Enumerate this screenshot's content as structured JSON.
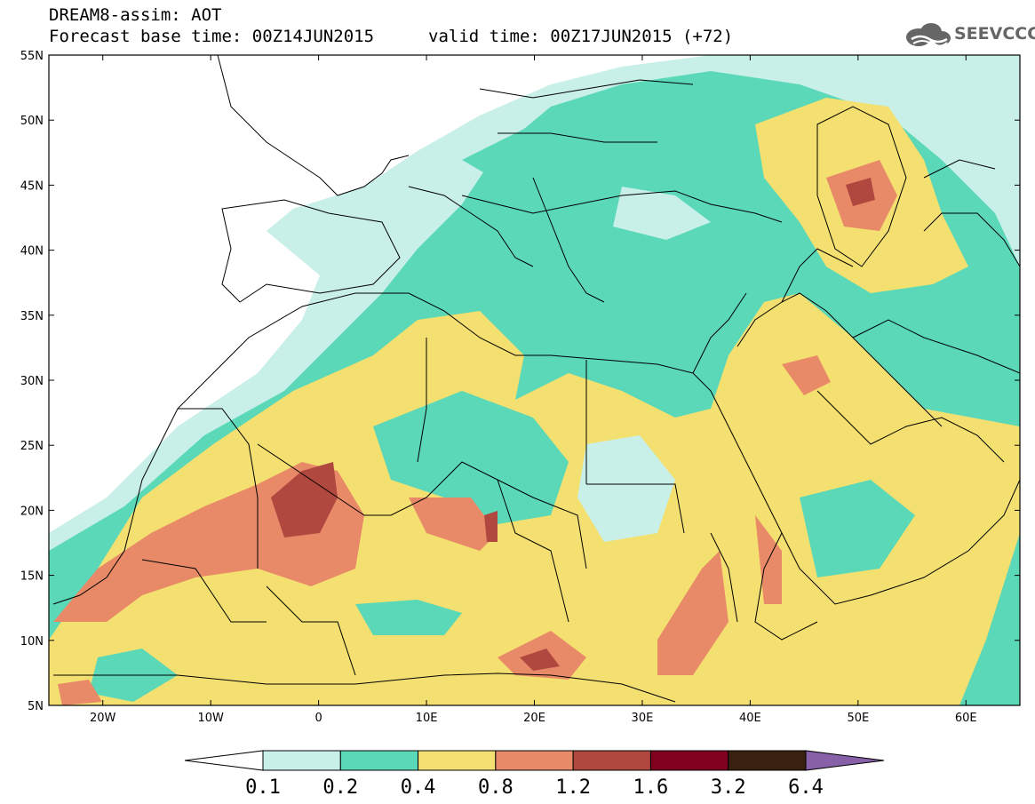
{
  "header": {
    "line1": "DREAM8-assim: AOT",
    "line2": "Forecast base time: 00Z14JUN2015",
    "line3": "valid time: 00Z17JUN2015 (+72)"
  },
  "logo": {
    "text": "SEEVCCC",
    "icon": "cloud-icon"
  },
  "map": {
    "lon_range": [
      -25,
      65
    ],
    "lat_range": [
      5,
      55
    ],
    "lat_labels": [
      "55N",
      "50N",
      "45N",
      "40N",
      "35N",
      "30N",
      "25N",
      "20N",
      "15N",
      "10N",
      "5N"
    ],
    "lon_labels": [
      "20W",
      "10W",
      "0",
      "10E",
      "20E",
      "30E",
      "40E",
      "50E",
      "60E"
    ]
  },
  "colorbar": {
    "labels": [
      "0.1",
      "0.2",
      "0.4",
      "0.8",
      "1.2",
      "1.6",
      "3.2",
      "6.4"
    ],
    "colors": [
      "#ffffff",
      "#c8f0e8",
      "#5ad8b8",
      "#f4e070",
      "#e88a68",
      "#b04840",
      "#800020",
      "#3a2010",
      "#8860a8"
    ]
  }
}
